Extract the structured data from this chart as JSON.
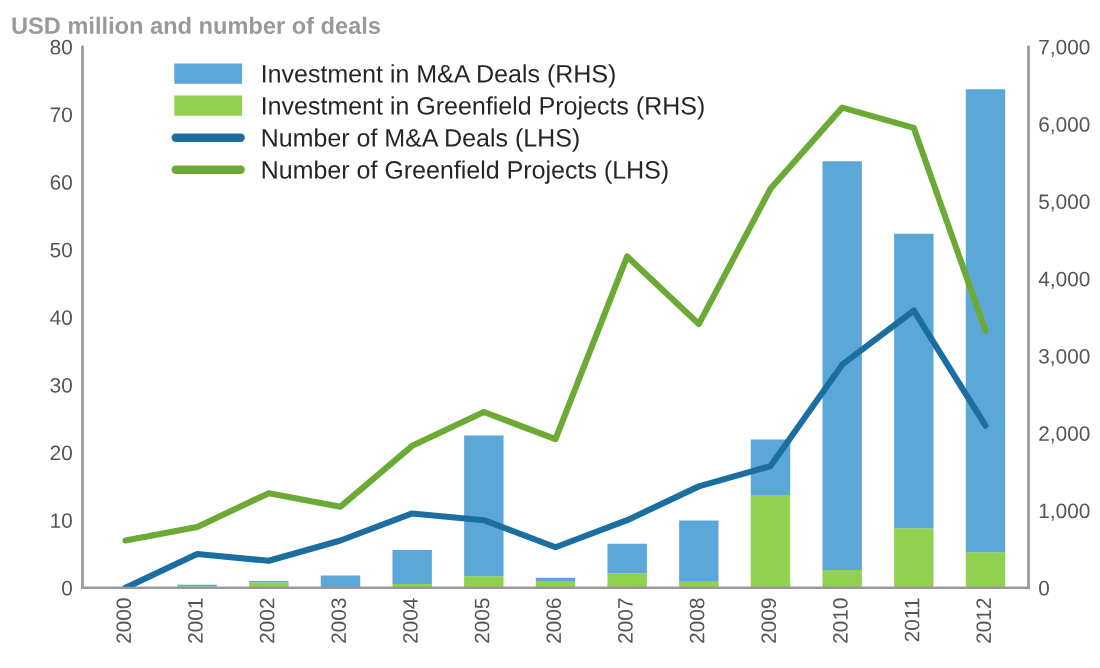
{
  "chart_data": {
    "type": "bar",
    "title": "USD million and number of deals",
    "categories": [
      "2000",
      "2001",
      "2002",
      "2003",
      "2004",
      "2005",
      "2006",
      "2007",
      "2008",
      "2009",
      "2010",
      "2011",
      "2012"
    ],
    "stacked": true,
    "series": [
      {
        "name": "Investment in Greenfield Projects (RHS)",
        "color": "#92d050",
        "axis": "y2",
        "values": [
          0,
          20,
          70,
          0,
          50,
          150,
          90,
          190,
          80,
          1200,
          230,
          770,
          460
        ]
      },
      {
        "name": "Investment in M&A Deals (RHS)",
        "color": "#5aa7d8",
        "axis": "y2",
        "values": [
          0,
          20,
          20,
          160,
          440,
          1820,
          40,
          380,
          790,
          720,
          5290,
          3810,
          5990
        ]
      },
      {
        "name": "Number of M&A Deals (LHS)",
        "type": "line",
        "color": "#1a6fa0",
        "axis": "y",
        "values": [
          0,
          5,
          4,
          7,
          11,
          10,
          6,
          10,
          15,
          18,
          33,
          41,
          24
        ]
      },
      {
        "name": "Number of Greenfield Projects (LHS)",
        "type": "line",
        "color": "#6aaa35",
        "axis": "y",
        "values": [
          7,
          9,
          14,
          12,
          21,
          26,
          22,
          49,
          39,
          59,
          71,
          68,
          38
        ]
      }
    ],
    "ylim": [
      0,
      80
    ],
    "yticks": [
      0,
      10,
      20,
      30,
      40,
      50,
      60,
      70,
      80
    ],
    "y2lim": [
      0,
      7000
    ],
    "y2ticks": [
      {
        "value": 0,
        "label": "0"
      },
      {
        "value": 1000,
        "label": "1,000"
      },
      {
        "value": 2000,
        "label": "2,000"
      },
      {
        "value": 3000,
        "label": "3,000"
      },
      {
        "value": 4000,
        "label": "4,000"
      },
      {
        "value": 5000,
        "label": "5,000"
      },
      {
        "value": 6000,
        "label": "6,000"
      },
      {
        "value": 7000,
        "label": "7,000"
      }
    ],
    "grid": false,
    "legend": "top left",
    "line_style": "solid",
    "marker": "none"
  }
}
